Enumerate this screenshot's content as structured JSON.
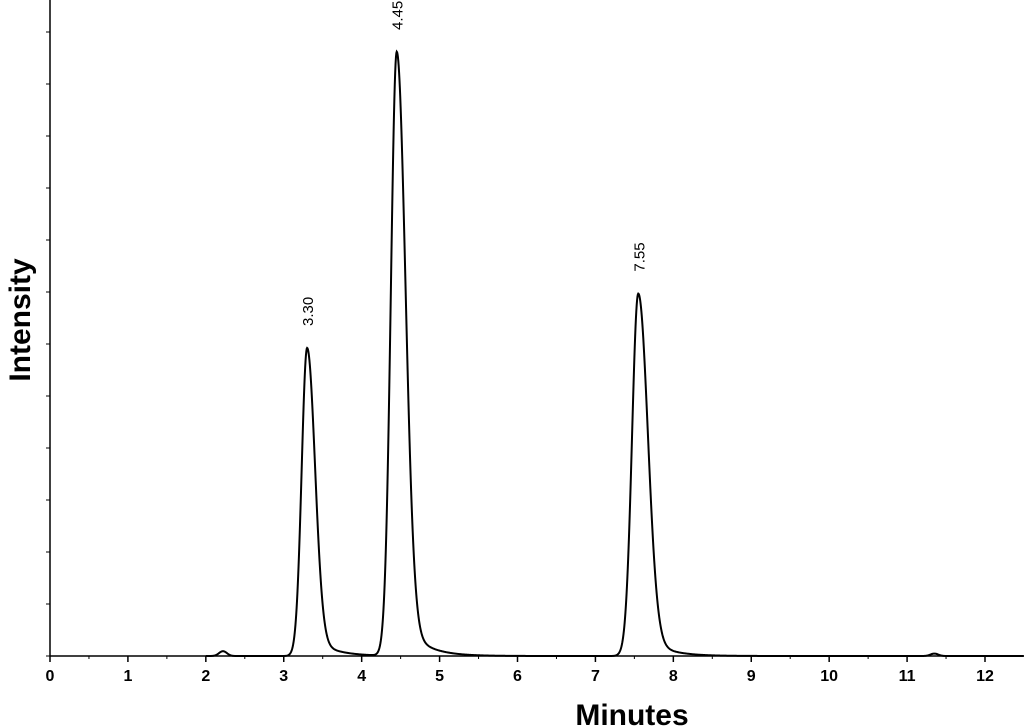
{
  "chart_data": {
    "type": "line",
    "xlabel": "Minutes",
    "ylabel": "Intensity",
    "xlim": [
      0,
      12.5
    ],
    "ylim": [
      0,
      1.0
    ],
    "xticks": [
      0,
      1,
      2,
      3,
      4,
      5,
      6,
      7,
      8,
      9,
      10,
      11,
      12
    ],
    "yticks_count": 13,
    "grid": false,
    "legend": "none",
    "peaks": [
      {
        "label": "3.30",
        "x": 3.3,
        "height": 0.51,
        "width_l": 0.07,
        "width_r": 0.1
      },
      {
        "label": "4.45",
        "x": 4.45,
        "height": 1.0,
        "width_l": 0.075,
        "width_r": 0.11
      },
      {
        "label": "7.55",
        "x": 7.55,
        "height": 0.6,
        "width_l": 0.08,
        "width_r": 0.12
      }
    ],
    "minor_bumps": [
      {
        "x": 2.22,
        "height": 0.008
      },
      {
        "x": 11.35,
        "height": 0.004
      }
    ],
    "baseline_shifts": [
      {
        "start": 3.15,
        "end": 3.62,
        "offset": 0.0
      },
      {
        "start": 4.3,
        "end": 4.95,
        "offset": 0.0
      },
      {
        "start": 7.1,
        "end": 8.1,
        "offset": 0.0
      }
    ],
    "line_color": "#000000"
  }
}
